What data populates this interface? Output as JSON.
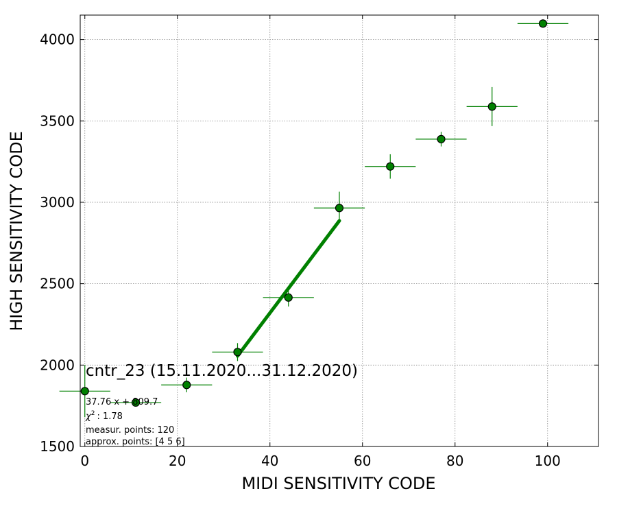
{
  "chart_data": {
    "type": "scatter",
    "xlabel": "MIDI SENSITIVITY CODE",
    "ylabel": "HIGH SENSITIVITY CODE",
    "xlim": [
      -1,
      111
    ],
    "ylim": [
      1500,
      4150
    ],
    "x_ticks": [
      0,
      20,
      40,
      60,
      80,
      100
    ],
    "y_ticks": [
      1500,
      2000,
      2500,
      3000,
      3500,
      4000
    ],
    "grid": true,
    "colors": {
      "points": "#008000",
      "marker_edge": "#000000",
      "fit_line": "#008000"
    },
    "series": [
      {
        "name": "",
        "points": [
          {
            "x": 0,
            "y": 1840,
            "xerr": 5.5,
            "yerr_low": 160,
            "yerr_high": 160
          },
          {
            "x": 11,
            "y": 1770,
            "xerr": 5.5,
            "yerr_low": 20,
            "yerr_high": 20
          },
          {
            "x": 22,
            "y": 1878,
            "xerr": 5.5,
            "yerr_low": 45,
            "yerr_high": 45
          },
          {
            "x": 33,
            "y": 2080,
            "xerr": 5.5,
            "yerr_low": 55,
            "yerr_high": 55
          },
          {
            "x": 44,
            "y": 2415,
            "xerr": 5.5,
            "yerr_low": 55,
            "yerr_high": 55
          },
          {
            "x": 55,
            "y": 2965,
            "xerr": 5.5,
            "yerr_low": 75,
            "yerr_high": 100
          },
          {
            "x": 66,
            "y": 3220,
            "xerr": 5.5,
            "yerr_low": 75,
            "yerr_high": 75
          },
          {
            "x": 77,
            "y": 3388,
            "xerr": 5.5,
            "yerr_low": 45,
            "yerr_high": 45
          },
          {
            "x": 88,
            "y": 3588,
            "xerr": 5.5,
            "yerr_low": 120,
            "yerr_high": 120
          },
          {
            "x": 99,
            "y": 4098,
            "xerr": 5.5,
            "yerr_low": 0,
            "yerr_high": 0
          }
        ]
      }
    ],
    "fit": {
      "slope": 37.76,
      "intercept": 809.7,
      "x_range": [
        33,
        55
      ]
    },
    "annotations": {
      "title": "cntr_23 (15.11.2020...31.12.2020)",
      "fit_eq": "37.76 x + 809.7",
      "chi2_label": "χ",
      "chi2_sup": "2",
      "chi2_value": ": 1.78",
      "measur_points": "measur. points: 120",
      "approx_points": "approx. points: [4 5 6]"
    }
  }
}
